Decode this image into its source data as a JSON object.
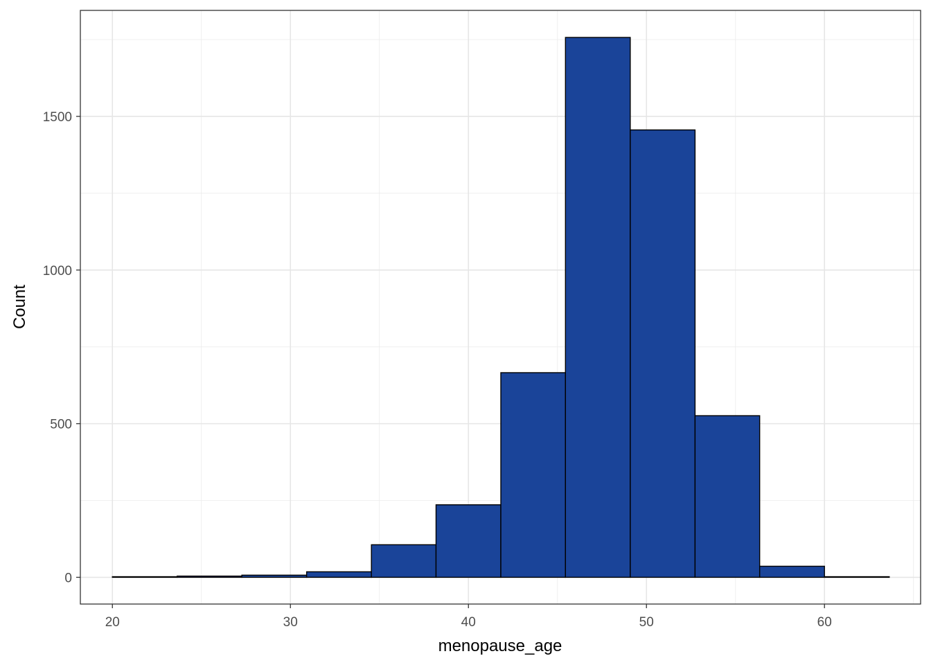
{
  "chart_data": {
    "type": "bar",
    "subtype": "histogram",
    "xlabel": "menopause_age",
    "ylabel": "Count",
    "xlim": [
      18.2,
      65.4
    ],
    "ylim": [
      -87,
      1845
    ],
    "x_ticks": [
      20,
      30,
      40,
      50,
      60
    ],
    "y_ticks": [
      0,
      500,
      1000,
      1500
    ],
    "grid": true,
    "legend": "none",
    "bar_fill": "#1a4499",
    "bar_stroke": "#000000",
    "bins": [
      {
        "x0": 20.0,
        "x1": 23.64,
        "count": 2
      },
      {
        "x0": 23.64,
        "x1": 27.27,
        "count": 4
      },
      {
        "x0": 27.27,
        "x1": 30.91,
        "count": 7
      },
      {
        "x0": 30.91,
        "x1": 34.55,
        "count": 18
      },
      {
        "x0": 34.55,
        "x1": 38.18,
        "count": 106
      },
      {
        "x0": 38.18,
        "x1": 41.82,
        "count": 236
      },
      {
        "x0": 41.82,
        "x1": 45.45,
        "count": 666
      },
      {
        "x0": 45.45,
        "x1": 49.09,
        "count": 1757
      },
      {
        "x0": 49.09,
        "x1": 52.73,
        "count": 1456
      },
      {
        "x0": 52.73,
        "x1": 56.36,
        "count": 526
      },
      {
        "x0": 56.36,
        "x1": 60.0,
        "count": 36
      },
      {
        "x0": 60.0,
        "x1": 63.64,
        "count": 2
      }
    ]
  }
}
